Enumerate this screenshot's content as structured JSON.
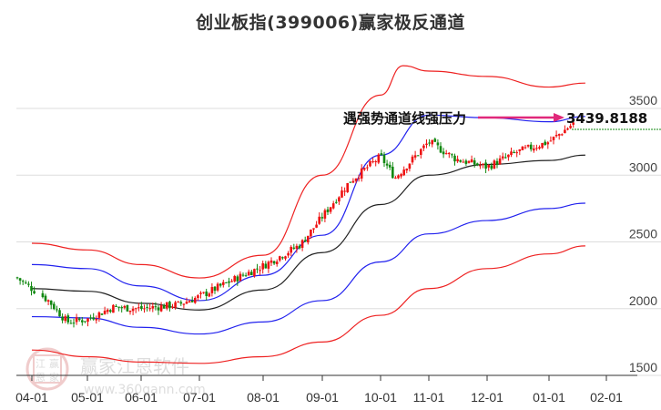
{
  "title": "创业板指(399006)赢家极反通道",
  "annotation": {
    "label": "遇强势通道线强压力",
    "value": "3439.8188",
    "arrow_color": "#e0287a"
  },
  "watermark": {
    "name": "赢家江恩软件",
    "url": "www.360gann.com",
    "seal": [
      "江",
      "赢",
      "恩",
      "家"
    ]
  },
  "colors": {
    "up": "#ee1111",
    "down": "#118811",
    "outer_band": "#ee2222",
    "inner_band": "#2222ee",
    "mid_line": "#222222",
    "grid": "#dddddd"
  },
  "chart_data": {
    "type": "candlestick",
    "title": "创业板指(399006)赢家极反通道",
    "xlabel": "",
    "ylabel": "",
    "x_ticks": [
      "04-01",
      "05-01",
      "06-01",
      "07-01",
      "08-01",
      "09-01",
      "10-01",
      "11-01",
      "12-01",
      "01-01",
      "02-01"
    ],
    "y_ticks": [
      1500,
      2000,
      2500,
      3000,
      3500
    ],
    "ylim": [
      1500,
      3850
    ],
    "grid": "horizontal",
    "annotations": [
      {
        "text": "遇强势通道线强压力",
        "value": 3439.8188,
        "type": "arrow_to_value"
      }
    ],
    "series": [
      {
        "name": "outer_upper_band",
        "color": "#ee2222",
        "points": [
          [
            "04-01",
            2490
          ],
          [
            "05-01",
            2440
          ],
          [
            "06-01",
            2330
          ],
          [
            "07-01",
            2230
          ],
          [
            "08-01",
            2400
          ],
          [
            "09-01",
            3000
          ],
          [
            "10-01",
            3600
          ],
          [
            "10-15",
            3820
          ],
          [
            "11-01",
            3780
          ],
          [
            "12-01",
            3740
          ],
          [
            "01-01",
            3660
          ],
          [
            "01-20",
            3690
          ]
        ]
      },
      {
        "name": "inner_upper_band",
        "color": "#2222ee",
        "points": [
          [
            "04-01",
            2330
          ],
          [
            "05-01",
            2300
          ],
          [
            "06-01",
            2170
          ],
          [
            "07-01",
            2060
          ],
          [
            "08-01",
            2250
          ],
          [
            "09-01",
            2550
          ],
          [
            "10-01",
            3150
          ],
          [
            "11-01",
            3450
          ],
          [
            "12-01",
            3430
          ],
          [
            "01-01",
            3400
          ],
          [
            "01-20",
            3440
          ]
        ]
      },
      {
        "name": "middle_line",
        "color": "#222222",
        "points": [
          [
            "04-01",
            2150
          ],
          [
            "05-01",
            2130
          ],
          [
            "06-01",
            2040
          ],
          [
            "07-01",
            1990
          ],
          [
            "08-01",
            2140
          ],
          [
            "09-01",
            2420
          ],
          [
            "10-01",
            2780
          ],
          [
            "11-01",
            3000
          ],
          [
            "12-01",
            3080
          ],
          [
            "01-01",
            3110
          ],
          [
            "01-20",
            3150
          ]
        ]
      },
      {
        "name": "inner_lower_band",
        "color": "#2222ee",
        "points": [
          [
            "04-01",
            1940
          ],
          [
            "05-01",
            1930
          ],
          [
            "06-01",
            1860
          ],
          [
            "07-01",
            1810
          ],
          [
            "08-01",
            1900
          ],
          [
            "09-01",
            2060
          ],
          [
            "10-01",
            2350
          ],
          [
            "11-01",
            2560
          ],
          [
            "12-01",
            2660
          ],
          [
            "01-01",
            2750
          ],
          [
            "01-20",
            2790
          ]
        ]
      },
      {
        "name": "outer_lower_band",
        "color": "#ee2222",
        "points": [
          [
            "04-01",
            1690
          ],
          [
            "05-01",
            1640
          ],
          [
            "06-01",
            1600
          ],
          [
            "07-01",
            1590
          ],
          [
            "08-01",
            1640
          ],
          [
            "09-01",
            1750
          ],
          [
            "10-01",
            1950
          ],
          [
            "11-01",
            2150
          ],
          [
            "12-01",
            2300
          ],
          [
            "01-01",
            2410
          ],
          [
            "01-20",
            2470
          ]
        ]
      },
      {
        "name": "price_close_approx",
        "color": "#ee1111",
        "points": [
          [
            "04-01",
            2150
          ],
          [
            "04-10",
            2060
          ],
          [
            "04-20",
            1900
          ],
          [
            "05-01",
            1920
          ],
          [
            "05-15",
            2010
          ],
          [
            "06-01",
            2000
          ],
          [
            "06-20",
            2030
          ],
          [
            "07-01",
            2090
          ],
          [
            "07-20",
            2240
          ],
          [
            "08-01",
            2320
          ],
          [
            "08-20",
            2480
          ],
          [
            "09-01",
            2690
          ],
          [
            "09-15",
            2950
          ],
          [
            "10-01",
            3140
          ],
          [
            "10-10",
            2980
          ],
          [
            "11-01",
            3250
          ],
          [
            "11-15",
            3120
          ],
          [
            "12-01",
            3060
          ],
          [
            "12-15",
            3170
          ],
          [
            "01-01",
            3250
          ],
          [
            "01-15",
            3400
          ],
          [
            "01-20",
            3360
          ]
        ]
      }
    ]
  }
}
